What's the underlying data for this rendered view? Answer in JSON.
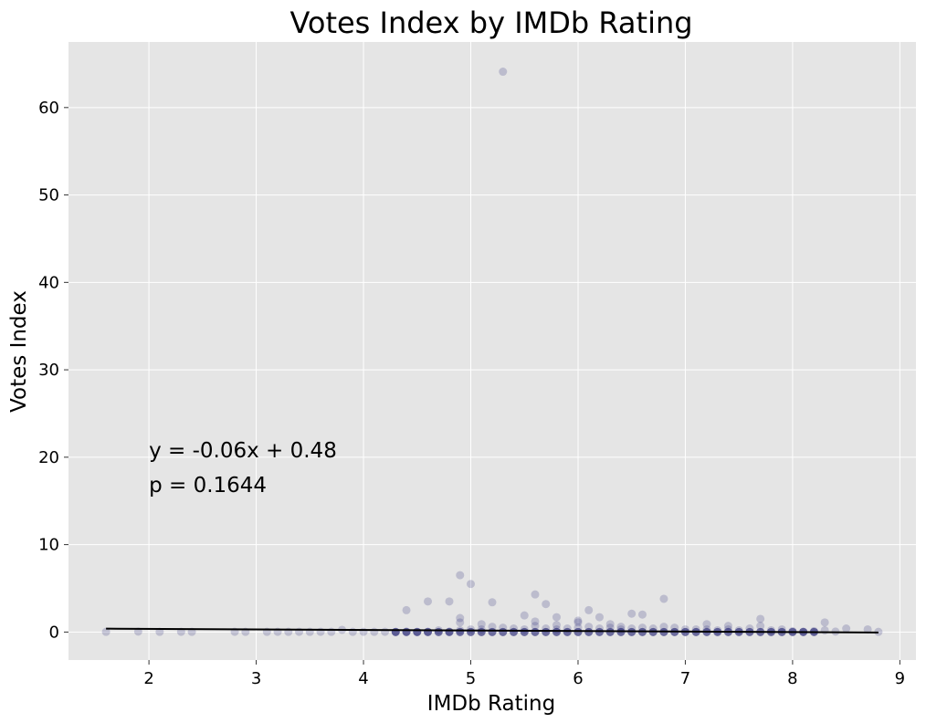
{
  "chart_data": {
    "type": "scatter",
    "title": "Votes Index by IMDb Rating",
    "xlabel": "IMDb Rating",
    "ylabel": "Votes Index",
    "xlim": [
      1.25,
      9.15
    ],
    "ylim": [
      -3.2,
      67.5
    ],
    "xticks": [
      2,
      3,
      4,
      5,
      6,
      7,
      8,
      9
    ],
    "yticks": [
      0,
      10,
      20,
      30,
      40,
      50,
      60
    ],
    "grid": true,
    "point_color": "#191970",
    "background": "#e5e5e5",
    "grid_color": "#ffffff",
    "points": [
      [
        1.6,
        0.02
      ],
      [
        1.9,
        0.05
      ],
      [
        2.1,
        0.02
      ],
      [
        2.3,
        0.03
      ],
      [
        2.4,
        0.02
      ],
      [
        2.8,
        0.03
      ],
      [
        2.9,
        0.02
      ],
      [
        3.1,
        0.02
      ],
      [
        3.2,
        0.03
      ],
      [
        3.3,
        0.02
      ],
      [
        3.4,
        0.03
      ],
      [
        3.5,
        0.02
      ],
      [
        3.6,
        0.03
      ],
      [
        3.7,
        0.02
      ],
      [
        3.8,
        0.25
      ],
      [
        3.9,
        0.02
      ],
      [
        4.0,
        0.03
      ],
      [
        4.1,
        0.02
      ],
      [
        4.2,
        0.03
      ],
      [
        4.3,
        0.02
      ],
      [
        4.4,
        2.5
      ],
      [
        4.4,
        0.05
      ],
      [
        4.5,
        0.03
      ],
      [
        4.6,
        3.5
      ],
      [
        4.6,
        0.04
      ],
      [
        4.7,
        0.2
      ],
      [
        4.8,
        3.5
      ],
      [
        4.8,
        0.05
      ],
      [
        4.9,
        6.5
      ],
      [
        4.9,
        1.6
      ],
      [
        4.9,
        1.1
      ],
      [
        4.9,
        0.2
      ],
      [
        5.0,
        5.5
      ],
      [
        5.0,
        0.3
      ],
      [
        5.1,
        0.9
      ],
      [
        5.1,
        0.3
      ],
      [
        5.2,
        3.4
      ],
      [
        5.2,
        0.6
      ],
      [
        5.3,
        64.1
      ],
      [
        5.3,
        0.5
      ],
      [
        5.4,
        0.4
      ],
      [
        5.5,
        1.9
      ],
      [
        5.5,
        0.3
      ],
      [
        5.6,
        4.3
      ],
      [
        5.6,
        1.2
      ],
      [
        5.6,
        0.7
      ],
      [
        5.7,
        3.2
      ],
      [
        5.7,
        0.4
      ],
      [
        5.8,
        1.7
      ],
      [
        5.8,
        0.8
      ],
      [
        5.8,
        0.3
      ],
      [
        5.9,
        0.4
      ],
      [
        6.0,
        1.3
      ],
      [
        6.0,
        1.1
      ],
      [
        6.0,
        0.5
      ],
      [
        6.1,
        2.5
      ],
      [
        6.1,
        0.6
      ],
      [
        6.2,
        1.7
      ],
      [
        6.2,
        0.4
      ],
      [
        6.3,
        0.9
      ],
      [
        6.3,
        0.5
      ],
      [
        6.4,
        0.6
      ],
      [
        6.4,
        0.3
      ],
      [
        6.5,
        2.1
      ],
      [
        6.5,
        0.4
      ],
      [
        6.6,
        2.0
      ],
      [
        6.6,
        0.5
      ],
      [
        6.7,
        0.4
      ],
      [
        6.8,
        3.8
      ],
      [
        6.8,
        0.6
      ],
      [
        6.9,
        0.5
      ],
      [
        7.0,
        0.3
      ],
      [
        7.1,
        0.3
      ],
      [
        7.2,
        0.9
      ],
      [
        7.2,
        0.3
      ],
      [
        7.3,
        0.2
      ],
      [
        7.4,
        0.7
      ],
      [
        7.4,
        0.3
      ],
      [
        7.5,
        0.2
      ],
      [
        7.6,
        0.4
      ],
      [
        7.7,
        1.5
      ],
      [
        7.7,
        0.7
      ],
      [
        7.8,
        0.2
      ],
      [
        7.9,
        0.3
      ],
      [
        8.0,
        0.1
      ],
      [
        8.1,
        0.05
      ],
      [
        8.2,
        0.1
      ],
      [
        8.3,
        1.1
      ],
      [
        8.3,
        0.2
      ],
      [
        8.4,
        0.05
      ],
      [
        8.5,
        0.4
      ],
      [
        8.7,
        0.3
      ],
      [
        8.8,
        0.02
      ]
    ],
    "dense_band": {
      "x_start": 4.3,
      "x_end": 8.2,
      "step": 0.1,
      "y": 0.0
    },
    "regression_line": {
      "slope": -0.06,
      "intercept": 0.48,
      "x_range": [
        1.6,
        8.8
      ]
    },
    "annotations": [
      {
        "text": "y = -0.06x + 0.48",
        "x": 2.0,
        "y": 20.0
      },
      {
        "text": "p = 0.1644",
        "x": 2.0,
        "y": 16.0
      }
    ]
  }
}
